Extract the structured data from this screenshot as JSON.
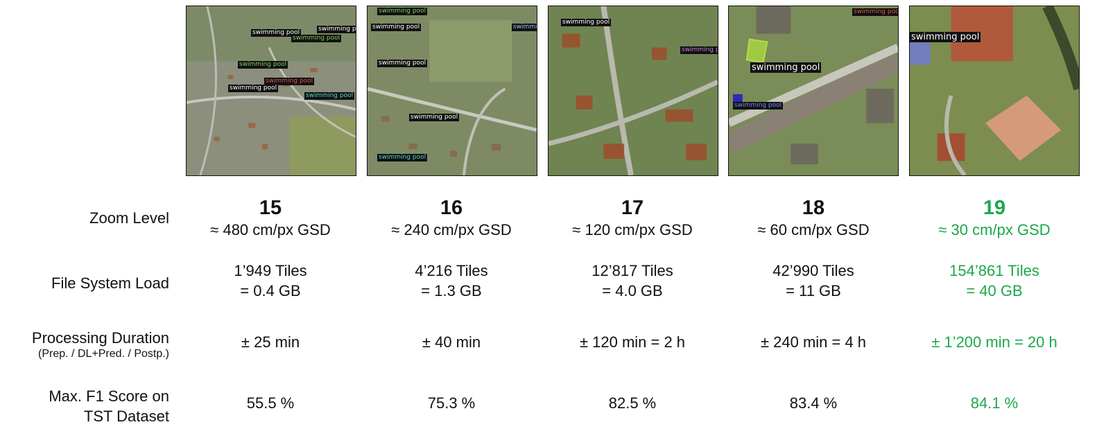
{
  "detection_label": "swimming pool",
  "rows": {
    "zoom": "Zoom Level",
    "load": "File System Load",
    "duration": "Processing Duration",
    "duration_sub": "(Prep. / DL+Pred. / Postp.)",
    "f1_line1": "Max. F1 Score on",
    "f1_line2": "TST Dataset"
  },
  "columns": [
    {
      "zoom": "15",
      "gsd": "≈ 480 cm/px GSD",
      "tiles": "1’949 Tiles",
      "size": "= 0.4 GB",
      "duration": "± 25 min",
      "f1": "55.5 %"
    },
    {
      "zoom": "16",
      "gsd": "≈ 240 cm/px GSD",
      "tiles": "4’216 Tiles",
      "size": "= 1.3 GB",
      "duration": "± 40 min",
      "f1": "75.3 %"
    },
    {
      "zoom": "17",
      "gsd": "≈ 120 cm/px GSD",
      "tiles": "12’817 Tiles",
      "size": "= 4.0 GB",
      "duration": "± 120 min = 2 h",
      "f1": "82.5 %"
    },
    {
      "zoom": "18",
      "gsd": "≈ 60 cm/px GSD",
      "tiles": "42’990 Tiles",
      "size": "= 11 GB",
      "duration": "± 240 min = 4 h",
      "f1": "83.4 %"
    },
    {
      "zoom": "19",
      "gsd": "≈ 30 cm/px GSD",
      "tiles": "154’861 Tiles",
      "size": "= 40 GB",
      "duration": "± 1’200 min = 20 h",
      "f1": "84.1 %",
      "highlight_color": "#1ba84a"
    }
  ]
}
